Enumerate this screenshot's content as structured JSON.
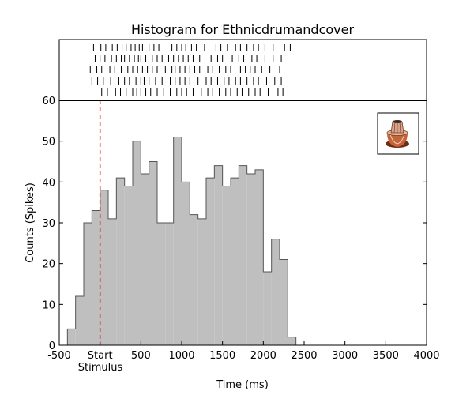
{
  "chart_data": {
    "type": "bar",
    "title": "Histogram for Ethnicdrumandcover",
    "xlabel": "Time (ms)",
    "ylabel": "Counts (Spikes)",
    "xlim": [
      -500,
      4000
    ],
    "ylim": [
      0,
      60
    ],
    "bin_width_ms": 100,
    "x_ticks": [
      -500,
      0,
      500,
      1000,
      1500,
      2000,
      2500,
      3000,
      3500,
      4000
    ],
    "x_tick_labels": [
      "-500",
      "Start",
      "500",
      "1000",
      "1500",
      "2000",
      "2500",
      "3000",
      "3500",
      "4000"
    ],
    "x_tick_sublabel": "Stimulus",
    "y_ticks": [
      0,
      10,
      20,
      30,
      40,
      50,
      60
    ],
    "stimulus_onset_ms": 0,
    "stimulus_line_color": "#e31a1c",
    "bar_fill_color": "#bfbfbf",
    "bar_edge_color": "#555555",
    "bins": [
      {
        "start": -400,
        "count": 4
      },
      {
        "start": -300,
        "count": 12
      },
      {
        "start": -200,
        "count": 30
      },
      {
        "start": -100,
        "count": 33
      },
      {
        "start": 0,
        "count": 38
      },
      {
        "start": 100,
        "count": 31
      },
      {
        "start": 200,
        "count": 41
      },
      {
        "start": 300,
        "count": 39
      },
      {
        "start": 400,
        "count": 50
      },
      {
        "start": 500,
        "count": 42
      },
      {
        "start": 600,
        "count": 45
      },
      {
        "start": 700,
        "count": 30
      },
      {
        "start": 800,
        "count": 30
      },
      {
        "start": 900,
        "count": 51
      },
      {
        "start": 1000,
        "count": 40
      },
      {
        "start": 1100,
        "count": 32
      },
      {
        "start": 1200,
        "count": 31
      },
      {
        "start": 1300,
        "count": 41
      },
      {
        "start": 1400,
        "count": 44
      },
      {
        "start": 1500,
        "count": 39
      },
      {
        "start": 1600,
        "count": 41
      },
      {
        "start": 1700,
        "count": 44
      },
      {
        "start": 1800,
        "count": 42
      },
      {
        "start": 1900,
        "count": 43
      },
      {
        "start": 2000,
        "count": 18
      },
      {
        "start": 2100,
        "count": 26
      },
      {
        "start": 2200,
        "count": 21
      },
      {
        "start": 2300,
        "count": 2
      }
    ],
    "raster": {
      "trials": [
        [
          -80,
          10,
          70,
          150,
          210,
          270,
          320,
          380,
          430,
          480,
          520,
          600,
          660,
          720,
          880,
          940,
          1000,
          1050,
          1120,
          1180,
          1280,
          1420,
          1480,
          1560,
          1660,
          1720,
          1800,
          1880,
          1940,
          2020,
          2120,
          2260,
          2330
        ],
        [
          -60,
          0,
          60,
          140,
          200,
          260,
          300,
          360,
          420,
          470,
          500,
          560,
          640,
          700,
          760,
          840,
          900,
          960,
          1020,
          1080,
          1140,
          1220,
          1360,
          1440,
          1500,
          1620,
          1700,
          1760,
          1860,
          1920,
          2020,
          2120,
          2220
        ],
        [
          -120,
          -40,
          20,
          120,
          180,
          260,
          340,
          400,
          460,
          520,
          580,
          640,
          700,
          800,
          880,
          920,
          980,
          1040,
          1100,
          1160,
          1220,
          1320,
          1380,
          1460,
          1540,
          1600,
          1720,
          1780,
          1840,
          1900,
          1980,
          2080,
          2200
        ],
        [
          -100,
          -30,
          40,
          130,
          230,
          300,
          360,
          440,
          500,
          540,
          600,
          680,
          760,
          860,
          920,
          980,
          1040,
          1100,
          1200,
          1300,
          1360,
          1440,
          1520,
          1580,
          1660,
          1720,
          1800,
          1880,
          1940,
          2040,
          2140,
          2220
        ],
        [
          -50,
          20,
          90,
          190,
          250,
          320,
          400,
          450,
          500,
          560,
          620,
          700,
          780,
          860,
          940,
          1000,
          1060,
          1140,
          1240,
          1320,
          1380,
          1460,
          1540,
          1600,
          1680,
          1740,
          1820,
          1900,
          1960,
          2060,
          2180,
          2240
        ]
      ]
    },
    "inset_icon": "tabla-drum-icon"
  }
}
